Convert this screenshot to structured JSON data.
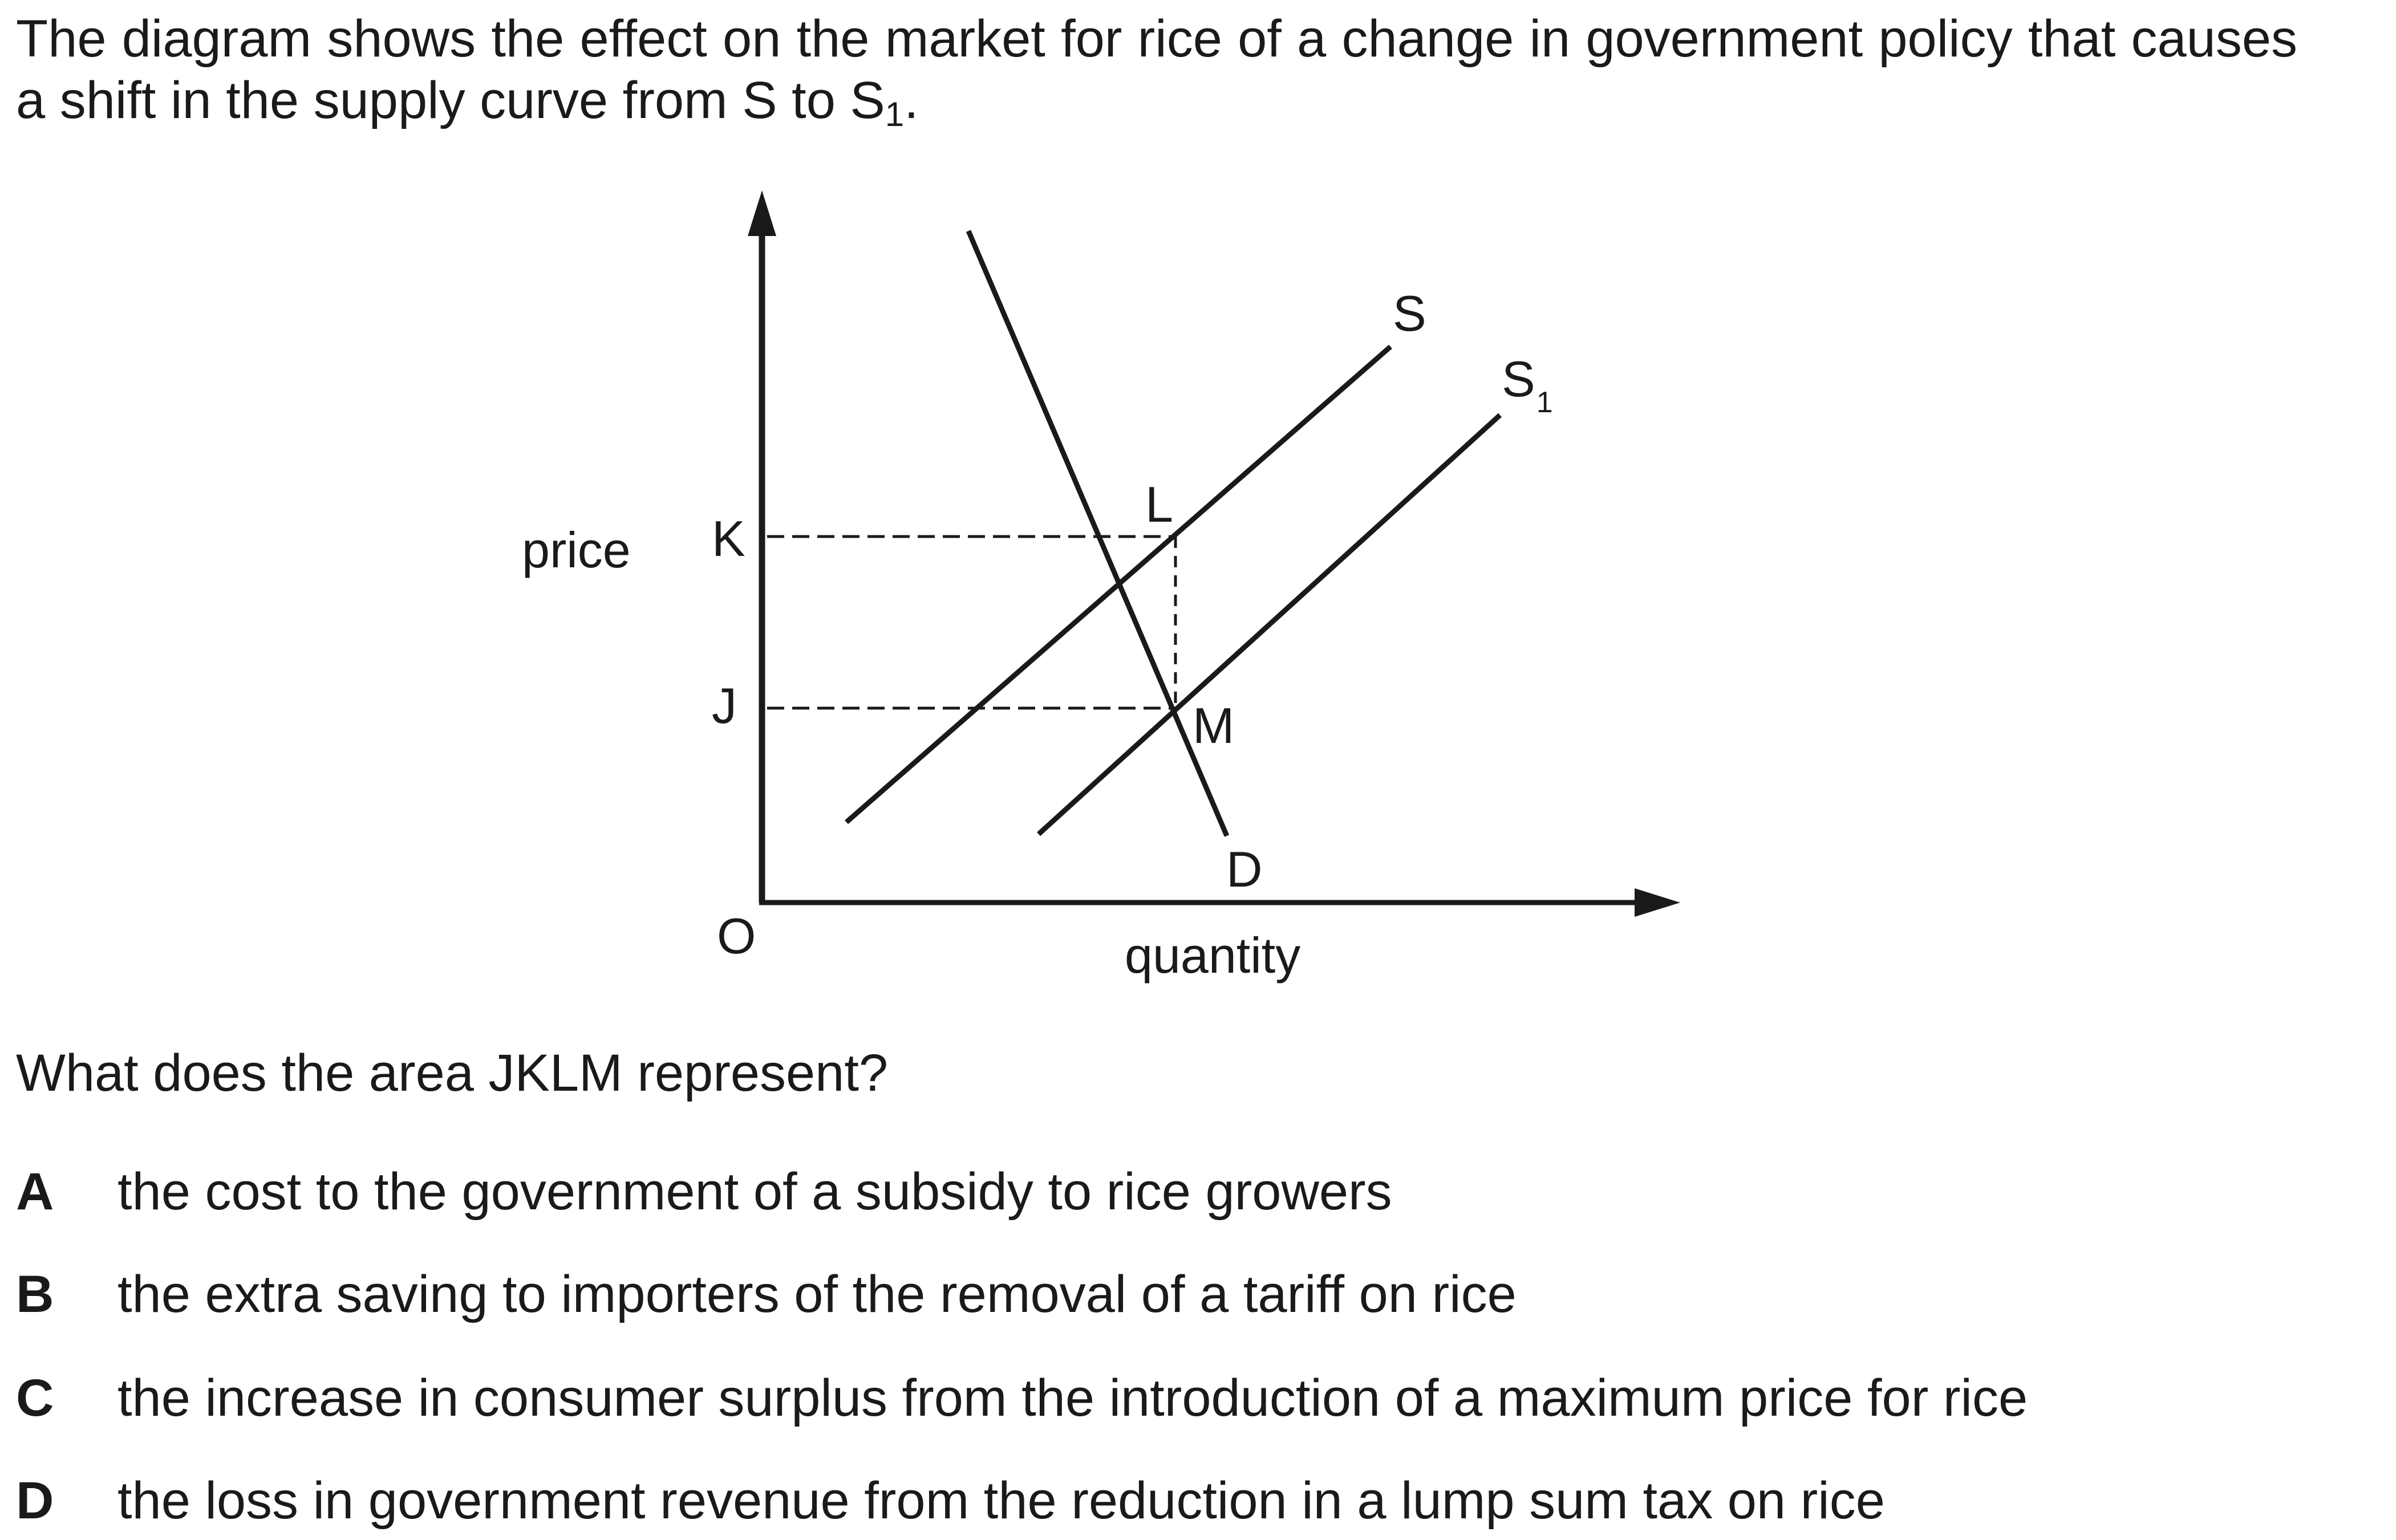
{
  "intro": {
    "before_sub": "The diagram shows the effect on the market for rice of a change in government policy that causes a shift in the supply curve from S to S",
    "sub": "1",
    "after_sub": "."
  },
  "diagram": {
    "y_axis_label": "price",
    "x_axis_label": "quantity",
    "origin_label": "O",
    "price_labels": [
      "K",
      "J"
    ],
    "point_labels": [
      "L",
      "M"
    ],
    "demand_label": "D",
    "supply_label": "S",
    "supply_shifted_label": "S",
    "supply_shifted_sub": "1"
  },
  "question": "What does the area JKLM represent?",
  "options": [
    {
      "letter": "A",
      "text": "the cost to the government of a subsidy to rice growers"
    },
    {
      "letter": "B",
      "text": "the extra saving to importers of the removal of a tariff on rice"
    },
    {
      "letter": "C",
      "text": "the increase in consumer surplus from the introduction of a maximum price for rice"
    },
    {
      "letter": "D",
      "text": "the loss in government revenue from the reduction in a lump sum tax on rice"
    }
  ]
}
